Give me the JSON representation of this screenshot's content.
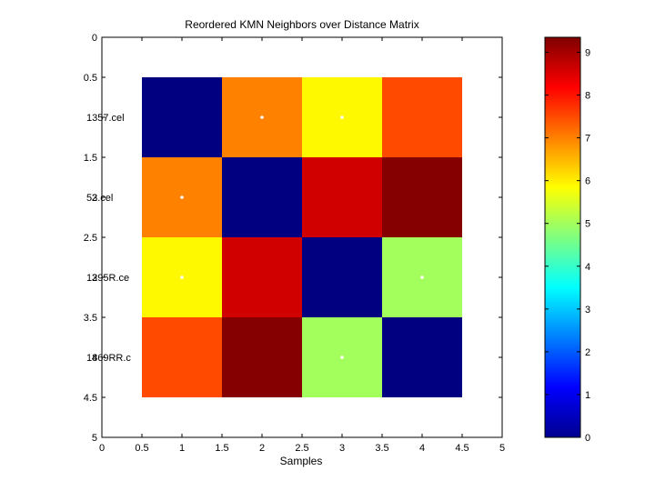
{
  "figure": {
    "background": "#ffffff",
    "title": "Reordered KMN Neighbors over Distance Matrix",
    "xlabel": "Samples"
  },
  "chart_data": [
    {
      "type": "heatmap",
      "title": "Reordered KMN Neighbors over Distance Matrix",
      "xlabel": "Samples",
      "ylabel": "",
      "xlim": [
        0,
        5
      ],
      "ylim": [
        0,
        5
      ],
      "y_direction": "down",
      "x_ticks": [
        "0",
        "0.5",
        "1",
        "1.5",
        "2",
        "2.5",
        "3",
        "3.5",
        "4",
        "4.5",
        "5"
      ],
      "y_ticks": [
        "0",
        "0.5",
        "1",
        "1.5",
        "2",
        "2.5",
        "3",
        "3.5",
        "4",
        "4.5",
        "5"
      ],
      "x_tick_values": [
        0,
        0.5,
        1,
        1.5,
        2,
        2.5,
        3,
        3.5,
        4,
        4.5,
        5
      ],
      "y_tick_values": [
        0,
        0.5,
        1,
        1.5,
        2,
        2.5,
        3,
        3.5,
        4,
        4.5,
        5
      ],
      "row_labels": [
        {
          "y": 1,
          "overlap_a": "1357.cel",
          "overlap_b": ""
        },
        {
          "y": 2,
          "overlap_a": "53.cel",
          "overlap_b": "2"
        },
        {
          "y": 3,
          "overlap_a": "1295R.ce",
          "overlap_b": "3"
        },
        {
          "y": 4,
          "overlap_a": "1869RR.c",
          "overlap_b": "4"
        }
      ],
      "matrix": [
        [
          0.0,
          7.0,
          5.9,
          7.5
        ],
        [
          7.0,
          0.0,
          8.6,
          9.3
        ],
        [
          5.9,
          8.6,
          0.0,
          5.0
        ],
        [
          7.5,
          9.3,
          5.0,
          0.0
        ]
      ],
      "neighbor_markers": [
        {
          "x": 2,
          "y": 1
        },
        {
          "x": 3,
          "y": 1
        },
        {
          "x": 1,
          "y": 2
        },
        {
          "x": 1,
          "y": 3
        },
        {
          "x": 4,
          "y": 3
        },
        {
          "x": 3,
          "y": 4
        }
      ],
      "marker_color": "#ffffff",
      "colormap": "jet",
      "colorbar": {
        "range": [
          0,
          9.35
        ],
        "ticks": [
          0,
          1,
          2,
          3,
          4,
          5,
          6,
          7,
          8,
          9
        ],
        "tick_labels": [
          "0",
          "1",
          "2",
          "3",
          "4",
          "5",
          "6",
          "7",
          "8",
          "9"
        ]
      }
    }
  ]
}
